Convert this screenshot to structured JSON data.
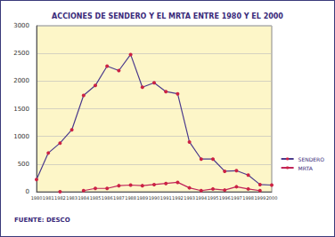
{
  "chart_data": {
    "type": "line",
    "title": "ACCIONES DE SENDERO Y EL MRTA ENTRE 1980 Y EL 2000",
    "source": "FUENTE: DESCO",
    "categories": [
      "1980",
      "1981",
      "1982",
      "1983",
      "1984",
      "1985",
      "1986",
      "1987",
      "1988",
      "1989",
      "1990",
      "1991",
      "1992",
      "1993",
      "1994",
      "1995",
      "1996",
      "1997",
      "1998",
      "1999",
      "2000"
    ],
    "series": [
      {
        "name": "SENDERO",
        "color": "#4b3a8c",
        "marker": "circle",
        "values": [
          220,
          700,
          880,
          1120,
          1740,
          1920,
          2270,
          2190,
          2480,
          1890,
          1970,
          1810,
          1770,
          900,
          590,
          590,
          370,
          380,
          300,
          130,
          120
        ]
      },
      {
        "name": "MRTA",
        "color": "#c0245a",
        "marker": "circle",
        "values": [
          null,
          null,
          0,
          null,
          20,
          60,
          60,
          110,
          120,
          110,
          130,
          150,
          170,
          70,
          20,
          50,
          30,
          90,
          50,
          20,
          null
        ]
      }
    ],
    "ylim": [
      0,
      3000
    ],
    "yticks": [
      0,
      500,
      1000,
      1500,
      2000,
      2500,
      3000
    ],
    "grid": true,
    "legend": "right"
  }
}
